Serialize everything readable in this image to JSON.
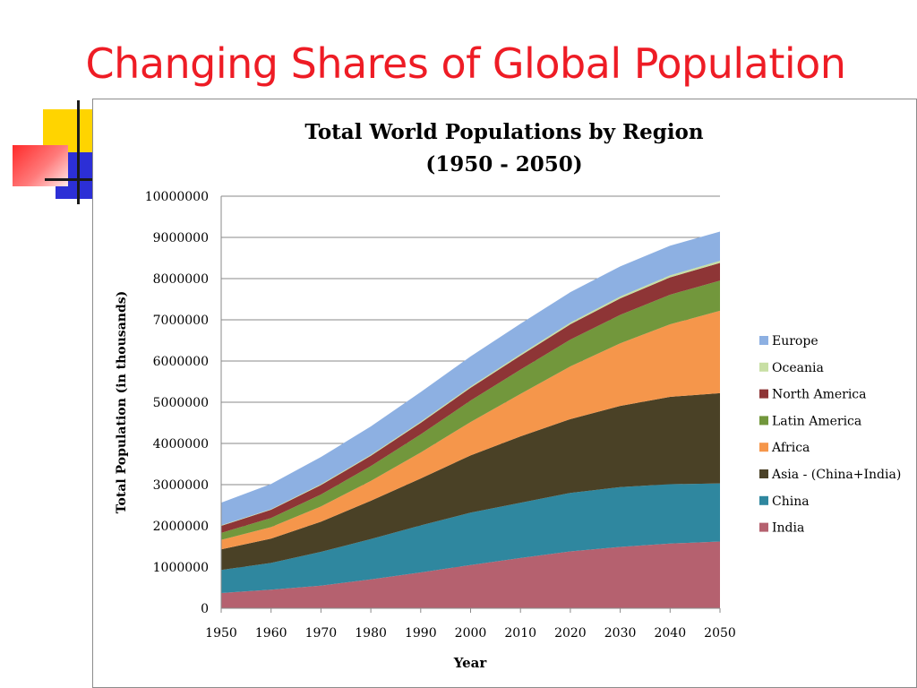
{
  "slide": {
    "title": "Changing Shares of Global Population"
  },
  "chart_data": {
    "type": "area",
    "stacked": true,
    "title_lines": [
      "Total World Populations by Region",
      "(1950 - 2050)"
    ],
    "xlabel": "Year",
    "ylabel": "Total Population (in thousands)",
    "x": [
      1950,
      1960,
      1970,
      1980,
      1990,
      2000,
      2010,
      2020,
      2030,
      2040,
      2050
    ],
    "ylim": [
      0,
      10000000
    ],
    "yticks": [
      "0",
      "1000000",
      "2000000",
      "3000000",
      "4000000",
      "5000000",
      "6000000",
      "7000000",
      "8000000",
      "9000000",
      "10000000"
    ],
    "grid": true,
    "legend_position": "right",
    "series": [
      {
        "name": "India",
        "color": "#b5616f",
        "values": [
          370000,
          450000,
          550000,
          700000,
          870000,
          1050000,
          1220000,
          1380000,
          1490000,
          1570000,
          1620000
        ]
      },
      {
        "name": "China",
        "color": "#2f879f",
        "values": [
          560000,
          650000,
          820000,
          980000,
          1140000,
          1270000,
          1340000,
          1420000,
          1450000,
          1440000,
          1410000
        ]
      },
      {
        "name": "Asia - (China+India)",
        "color": "#4a4126",
        "values": [
          500000,
          590000,
          730000,
          930000,
          1140000,
          1390000,
          1610000,
          1790000,
          1970000,
          2120000,
          2190000
        ]
      },
      {
        "name": "Africa",
        "color": "#f5964b",
        "values": [
          230000,
          280000,
          370000,
          480000,
          630000,
          810000,
          1030000,
          1280000,
          1520000,
          1760000,
          2000000
        ]
      },
      {
        "name": "Latin America",
        "color": "#72973c",
        "values": [
          170000,
          220000,
          290000,
          360000,
          440000,
          520000,
          590000,
          650000,
          690000,
          720000,
          730000
        ]
      },
      {
        "name": "North America",
        "color": "#8e3536",
        "values": [
          170000,
          200000,
          230000,
          250000,
          280000,
          310000,
          340000,
          370000,
          400000,
          420000,
          430000
        ]
      },
      {
        "name": "Oceania",
        "color": "#c8dfa4",
        "values": [
          13000,
          16000,
          20000,
          23000,
          27000,
          31000,
          36000,
          41000,
          45000,
          48000,
          51000
        ]
      },
      {
        "name": "Europe",
        "color": "#8db0e2",
        "values": [
          550000,
          610000,
          660000,
          690000,
          720000,
          730000,
          740000,
          740000,
          730000,
          720000,
          710000
        ]
      }
    ]
  }
}
